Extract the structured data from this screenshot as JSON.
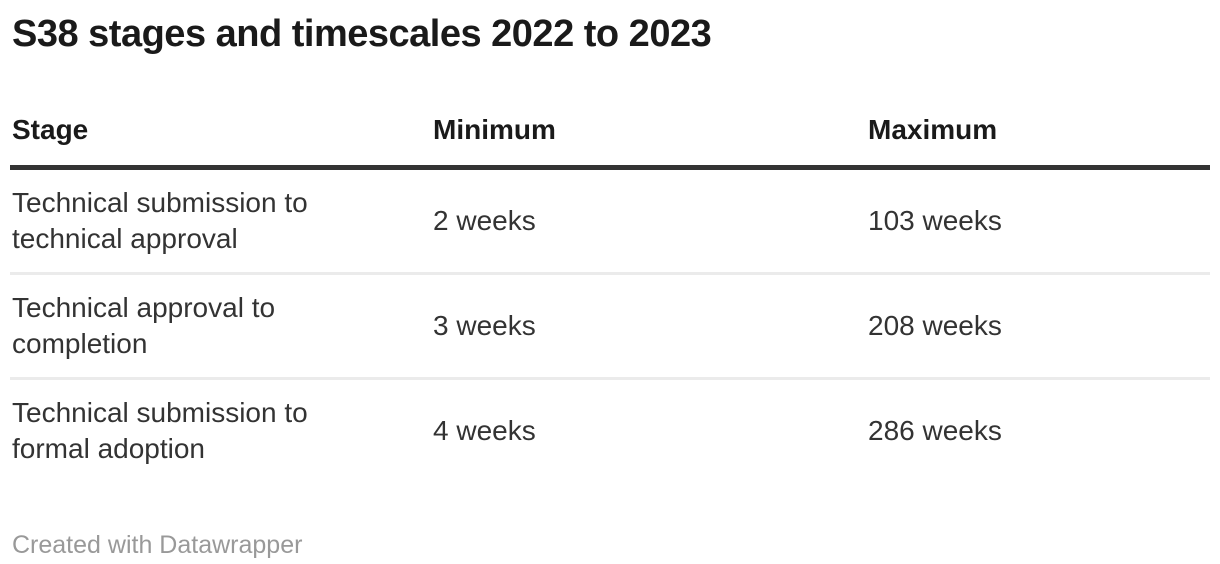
{
  "title": "S38 stages and timescales 2022 to 2023",
  "table": {
    "columns": [
      {
        "label": "Stage"
      },
      {
        "label": "Minimum"
      },
      {
        "label": "Maximum"
      }
    ],
    "rows": [
      {
        "cells": [
          "Technical submission to technical approval",
          "2 weeks",
          "103 weeks"
        ]
      },
      {
        "cells": [
          "Technical approval to completion",
          "3 weeks",
          "208 weeks"
        ]
      },
      {
        "cells": [
          "Technical submission to formal adoption",
          "4 weeks",
          "286 weeks"
        ]
      }
    ]
  },
  "footer": {
    "attribution": "Created with Datawrapper"
  },
  "colors": {
    "title_text": "#1a1a1a",
    "header_text": "#1a1a1a",
    "body_text": "#333333",
    "header_rule": "#333333",
    "row_rule": "#ebebeb",
    "attribution_text": "#999999",
    "background": "#ffffff"
  },
  "chart_data": {
    "type": "table",
    "title": "S38 stages and timescales 2022 to 2023",
    "columns": [
      "Stage",
      "Minimum",
      "Maximum"
    ],
    "rows": [
      [
        "Technical submission to technical approval",
        "2 weeks",
        "103 weeks"
      ],
      [
        "Technical approval to completion",
        "3 weeks",
        "208 weeks"
      ],
      [
        "Technical submission to formal adoption",
        "4 weeks",
        "286 weeks"
      ]
    ],
    "minimum_weeks": [
      2,
      3,
      4
    ],
    "maximum_weeks": [
      103,
      208,
      286
    ],
    "attribution": "Created with Datawrapper",
    "layout_hints": {
      "header_rule": "thick dark line under header",
      "row_rules": "thin light gray lines between rows",
      "grid": "horizontal rules only"
    }
  }
}
